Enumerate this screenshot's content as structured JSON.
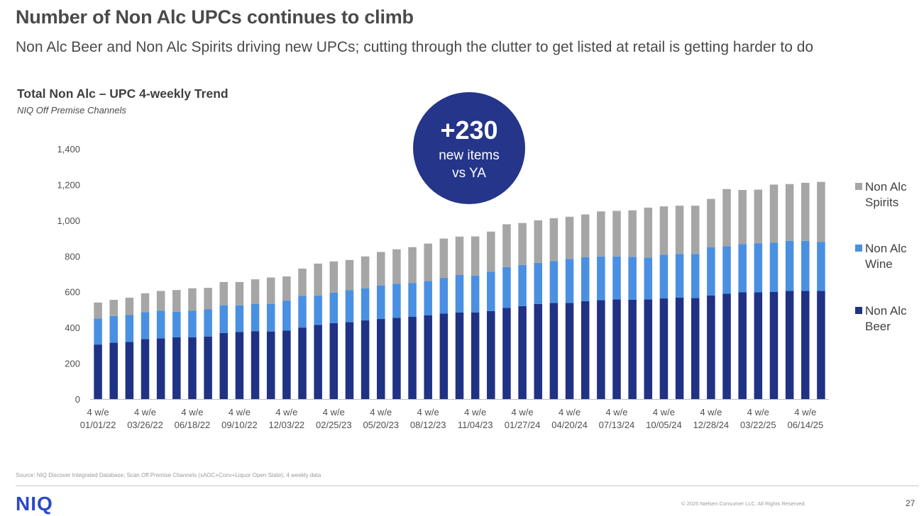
{
  "slide": {
    "title": "Number of Non Alc UPCs continues to climb",
    "subtitle": "Non Alc Beer and Non Alc Spirits driving new UPCs; cutting through the clutter to get listed at retail is getting harder to do",
    "source": "Source: NIQ Discover Integrated Database; Scan Off Premise Channels (xAOC+Conv+Liquor Open State); 4 weekly data",
    "logo": "NIQ",
    "copyright": "© 2025 Nielsen Consumer LLC. All Rights Reserved.",
    "page_number": "27"
  },
  "callout": {
    "number": "+230",
    "line1": "new items",
    "line2": "vs YA",
    "color": "#24358a"
  },
  "chart_data": {
    "type": "bar",
    "stacked": true,
    "title": "Total Non Alc – UPC 4-weekly Trend",
    "subtitle": "NIQ Off Premise Channels",
    "ylim": [
      0,
      1400
    ],
    "yticks": [
      0,
      200,
      400,
      600,
      800,
      1000,
      1200,
      1400
    ],
    "ytick_labels": [
      "0",
      "200",
      "400",
      "600",
      "800",
      "1,000",
      "1,200",
      "1,400"
    ],
    "grid": false,
    "legend_position": "right",
    "x_label_prefix": "4 w/e",
    "x_tick_labels": [
      "01/01/22",
      "03/26/22",
      "06/18/22",
      "09/10/22",
      "12/03/22",
      "02/25/23",
      "05/20/23",
      "08/12/23",
      "11/04/23",
      "01/27/24",
      "04/20/24",
      "07/13/24",
      "10/05/24",
      "12/28/24",
      "03/22/25",
      "06/14/25"
    ],
    "label_every": 3,
    "categories": [
      "01/01/22",
      "01/29/22",
      "02/26/22",
      "03/26/22",
      "04/23/22",
      "05/21/22",
      "06/18/22",
      "07/16/22",
      "08/13/22",
      "09/10/22",
      "10/08/22",
      "11/05/22",
      "12/03/22",
      "12/31/22",
      "01/28/23",
      "02/25/23",
      "03/25/23",
      "04/22/23",
      "05/20/23",
      "06/17/23",
      "07/15/23",
      "08/12/23",
      "09/09/23",
      "10/07/23",
      "11/04/23",
      "12/02/23",
      "12/30/23",
      "01/27/24",
      "02/24/24",
      "03/23/24",
      "04/20/24",
      "05/18/24",
      "06/15/24",
      "07/13/24",
      "08/10/24",
      "09/07/24",
      "10/05/24",
      "11/02/24",
      "11/30/24",
      "12/28/24",
      "01/25/25",
      "02/22/25",
      "03/22/25",
      "04/19/25",
      "05/17/25",
      "06/14/25",
      "07/12/25"
    ],
    "series": [
      {
        "name": "Non Alc Beer",
        "color": "#1f3284",
        "values": [
          305,
          315,
          320,
          335,
          340,
          345,
          345,
          350,
          370,
          375,
          380,
          378,
          383,
          400,
          415,
          425,
          430,
          440,
          448,
          455,
          460,
          468,
          478,
          484,
          485,
          492,
          510,
          520,
          532,
          538,
          538,
          548,
          553,
          558,
          556,
          558,
          563,
          567,
          565,
          580,
          590,
          597,
          597,
          600,
          605,
          605,
          605
        ]
      },
      {
        "name": "Non Alc Wine",
        "color": "#4a90e2",
        "values": [
          145,
          150,
          150,
          152,
          155,
          143,
          150,
          152,
          155,
          150,
          153,
          155,
          168,
          177,
          165,
          170,
          180,
          180,
          188,
          190,
          190,
          192,
          200,
          210,
          205,
          220,
          228,
          230,
          230,
          234,
          245,
          245,
          245,
          240,
          240,
          233,
          245,
          245,
          247,
          270,
          265,
          270,
          275,
          275,
          280,
          280,
          275
        ]
      },
      {
        "name": "Non Alc Spirits",
        "color": "#a6a6a6",
        "values": [
          90,
          90,
          97,
          105,
          110,
          122,
          125,
          120,
          130,
          130,
          137,
          147,
          135,
          153,
          178,
          175,
          168,
          178,
          187,
          193,
          200,
          210,
          220,
          215,
          220,
          225,
          240,
          235,
          238,
          240,
          237,
          240,
          252,
          255,
          260,
          280,
          270,
          270,
          270,
          270,
          320,
          303,
          300,
          325,
          318,
          325,
          335
        ]
      }
    ]
  }
}
